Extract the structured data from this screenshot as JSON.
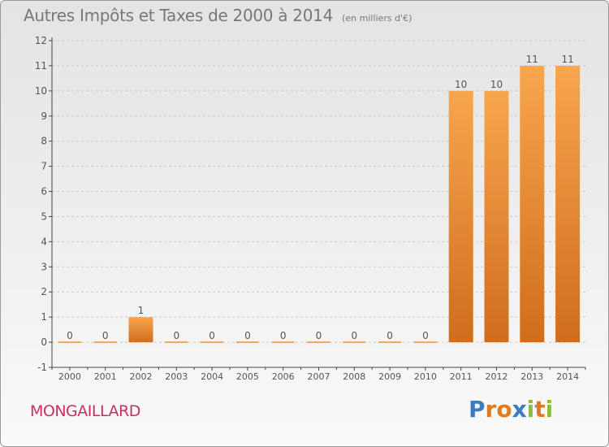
{
  "header": {
    "title": "Autres Impôts et Taxes de 2000 à 2014",
    "subtitle": "(en milliers d'€)"
  },
  "footer": {
    "town": "MONGAILLARD",
    "logo_text": "Proxiti",
    "logo_letters": [
      {
        "ch": "P",
        "color": "#3a7cc4"
      },
      {
        "ch": "r",
        "color": "#e07a20"
      },
      {
        "ch": "o",
        "color": "#e07a20"
      },
      {
        "ch": "x",
        "color": "#3a7cc4"
      },
      {
        "ch": "i",
        "color": "#8cbd3a"
      },
      {
        "ch": "t",
        "color": "#e07a20"
      },
      {
        "ch": "i",
        "color": "#8cbd3a"
      }
    ]
  },
  "colors": {
    "bar_light": "#f8a64e",
    "bar_dark": "#d06d1c",
    "axis": "#444444",
    "grid": "#c8c8c8",
    "text": "#555555",
    "town": "#c8305a"
  },
  "chart_data": {
    "type": "bar",
    "categories": [
      "2000",
      "2001",
      "2002",
      "2003",
      "2004",
      "2005",
      "2006",
      "2007",
      "2008",
      "2009",
      "2010",
      "2011",
      "2012",
      "2013",
      "2014"
    ],
    "values": [
      0,
      0,
      1,
      0,
      0,
      0,
      0,
      0,
      0,
      0,
      0,
      10,
      10,
      11,
      11
    ],
    "data_labels": [
      "0",
      "0",
      "1",
      "0",
      "0",
      "0",
      "0",
      "0",
      "0",
      "0",
      "0",
      "10",
      "10",
      "11",
      "11"
    ],
    "yticks": [
      -1,
      0,
      1,
      2,
      3,
      4,
      5,
      6,
      7,
      8,
      9,
      10,
      11,
      12
    ],
    "ylim": [
      -1,
      12
    ],
    "grid": true,
    "xlabel": "",
    "ylabel": ""
  }
}
